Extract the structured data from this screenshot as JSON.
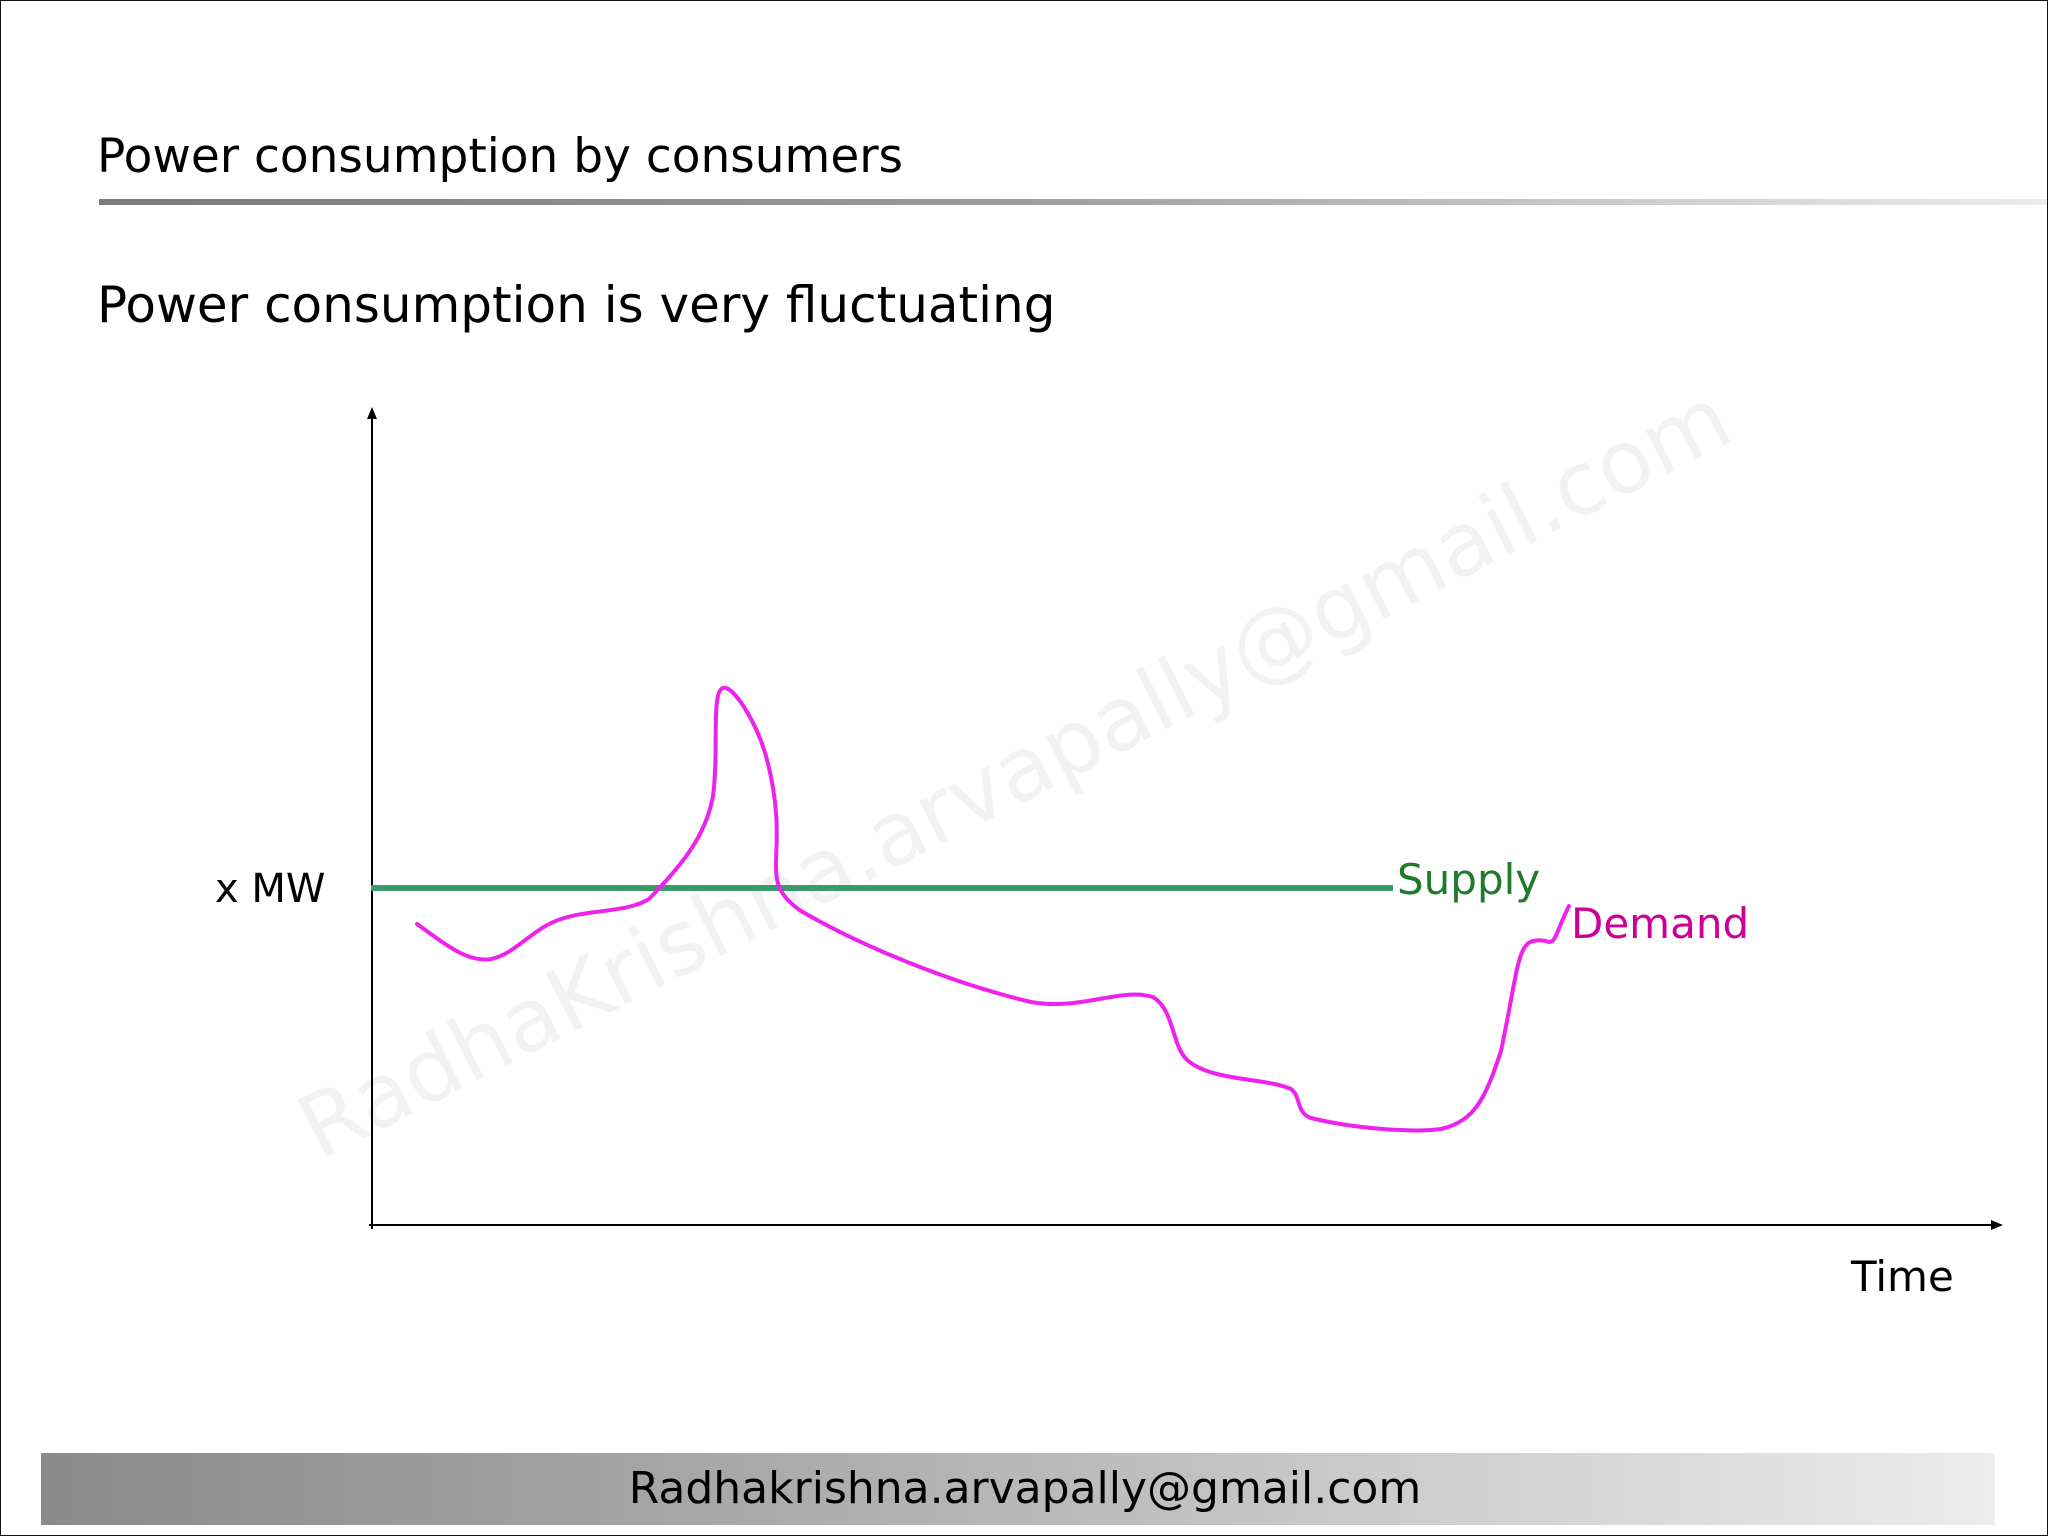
{
  "slide": {
    "title": "Power consumption by consumers",
    "subtitle": "Power consumption is very fluctuating",
    "footer": "Radhakrishna.arvapally@gmail.com",
    "watermark": "RadhaKrishna.arvapally@gmail.com"
  },
  "diagram": {
    "y_label": "x MW",
    "x_label": "Time",
    "supply_label": "Supply",
    "demand_label": "Demand",
    "colors": {
      "supply": "#3a9a6a",
      "supply_label": "#1f7a2e",
      "demand": "#ee22ee",
      "demand_label": "#cc0099",
      "axis": "#000000"
    }
  }
}
